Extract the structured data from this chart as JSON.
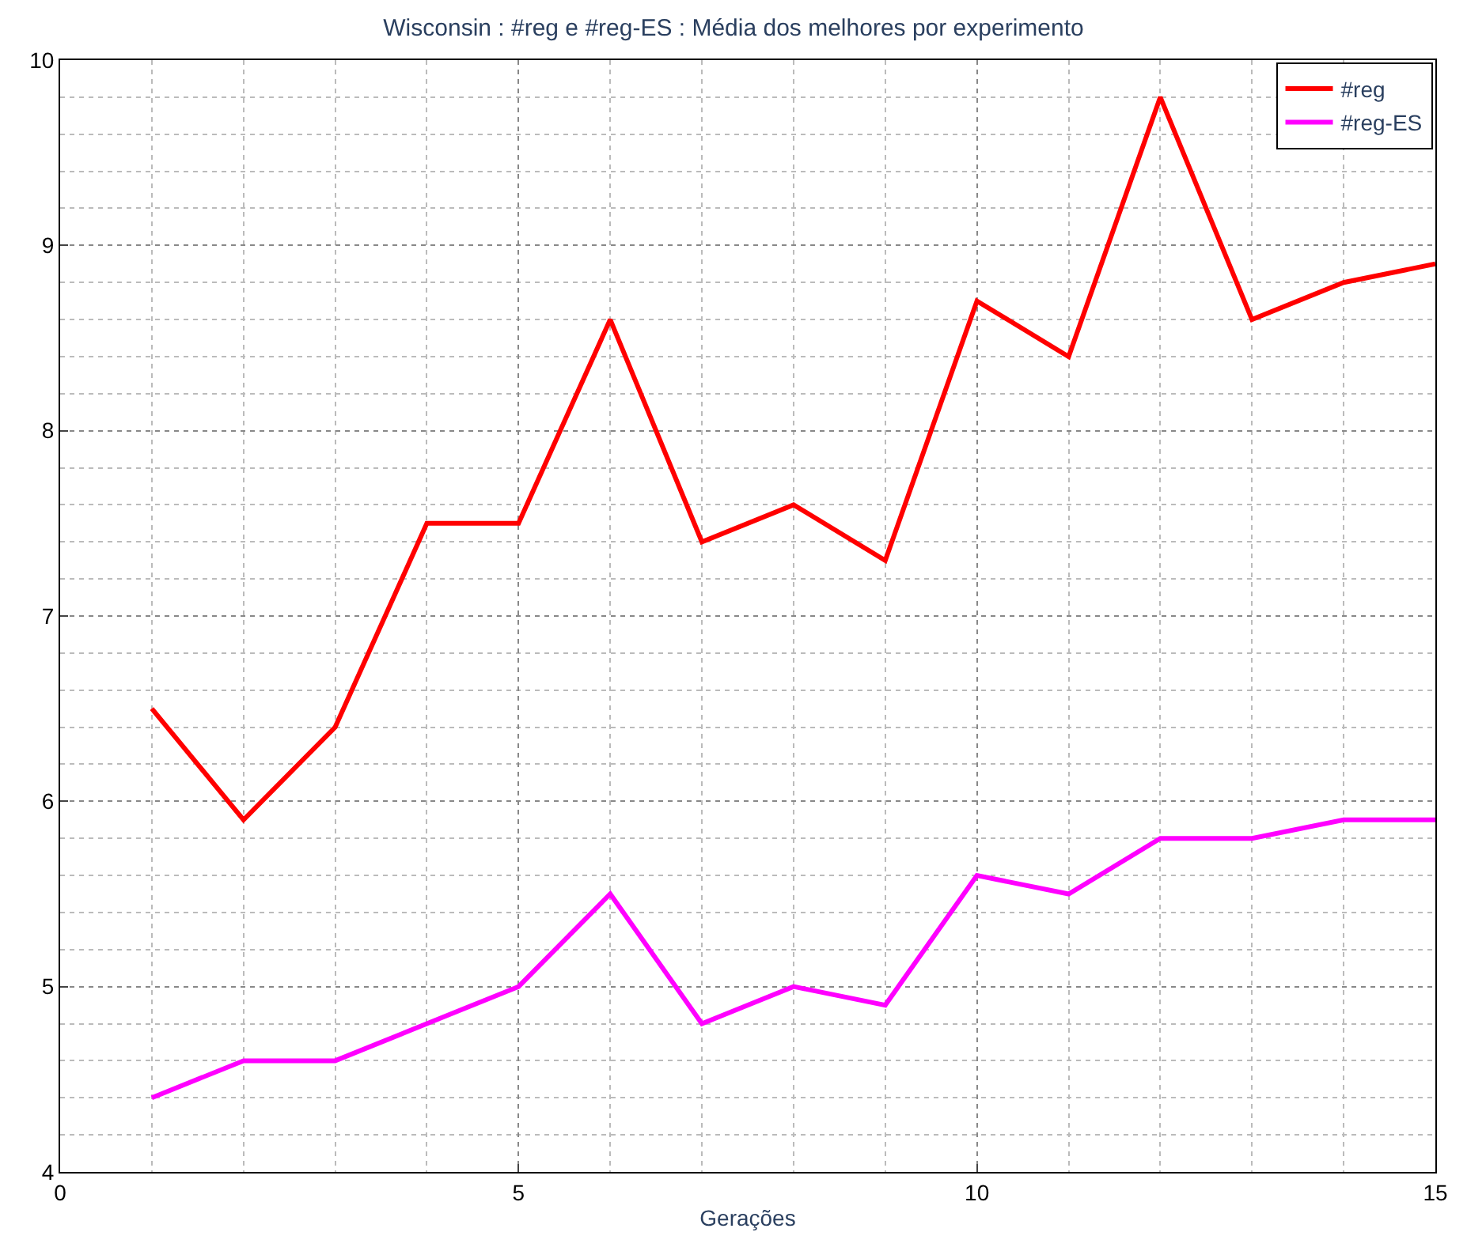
{
  "chart_data": {
    "type": "line",
    "title": "Wisconsin : #reg e #reg-ES : Média dos melhores por experimento",
    "xlabel": "Gerações",
    "x": [
      1,
      2,
      3,
      4,
      5,
      6,
      7,
      8,
      9,
      10,
      11,
      12,
      13,
      14,
      15
    ],
    "series": [
      {
        "name": "#reg",
        "color": "#ff0000",
        "values": [
          6.5,
          5.9,
          6.4,
          7.5,
          7.5,
          8.6,
          7.4,
          7.6,
          7.3,
          8.7,
          8.4,
          9.8,
          8.6,
          8.8,
          8.9
        ]
      },
      {
        "name": "#reg-ES",
        "color": "#ff00ff",
        "values": [
          4.4,
          4.6,
          4.6,
          4.8,
          5.0,
          5.5,
          4.8,
          5.0,
          4.9,
          5.6,
          5.5,
          5.8,
          5.8,
          5.9,
          5.9
        ]
      }
    ],
    "xlim": [
      0,
      15
    ],
    "xticks": [
      0,
      5,
      10,
      15
    ],
    "ylim": [
      4,
      10
    ],
    "yticks": [
      4,
      5,
      6,
      7,
      8,
      9,
      10
    ],
    "grid": true,
    "legend": "top right",
    "marker": "none",
    "line_style": "solid"
  }
}
